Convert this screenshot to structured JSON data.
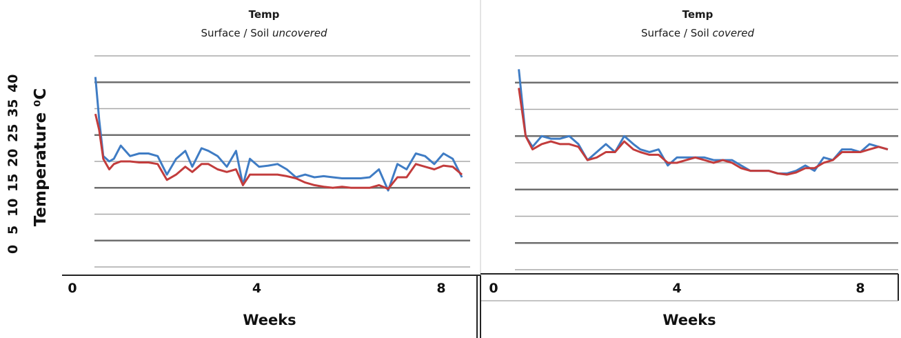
{
  "chart_data": [
    {
      "type": "line",
      "title": "Temp",
      "subtitle_prefix": "Surface / Soil ",
      "subtitle_em": "uncovered",
      "xlabel": "Weeks",
      "ylabel": "Temperature ⁰C",
      "yticks": [
        "0",
        "5",
        "10",
        "15",
        "20",
        "25",
        "35",
        "40"
      ],
      "xticks": [
        0,
        4,
        8
      ],
      "xlim": [
        0,
        8.7
      ],
      "ylim": [
        -2,
        40
      ],
      "gridlines": [
        0,
        5,
        10,
        15,
        20,
        25,
        30,
        35,
        40
      ],
      "series": [
        {
          "color": "#3f7cc4",
          "x": [
            0.5,
            0.58,
            0.67,
            0.8,
            0.9,
            1.05,
            1.25,
            1.45,
            1.65,
            1.85,
            2.05,
            2.25,
            2.45,
            2.6,
            2.8,
            2.95,
            3.15,
            3.35,
            3.55,
            3.7,
            3.85,
            4.05,
            4.25,
            4.45,
            4.65,
            4.85,
            5.05,
            5.25,
            5.45,
            5.65,
            5.85,
            6.05,
            6.25,
            6.45,
            6.65,
            6.85,
            7.05,
            7.25,
            7.45,
            7.65,
            7.85,
            8.05,
            8.25,
            8.45
          ],
          "y": [
            36,
            28,
            21,
            20,
            20.5,
            23,
            21,
            21.5,
            21.5,
            21,
            17.5,
            20.5,
            22,
            19,
            22.5,
            22,
            21,
            19,
            22,
            15.5,
            20.5,
            19,
            19.2,
            19.5,
            18.5,
            17,
            17.5,
            17,
            17.2,
            17,
            16.8,
            16.8,
            16.8,
            17,
            18.5,
            14.5,
            19.5,
            18.5,
            21.5,
            21,
            19.5,
            21.5,
            20.5,
            17
          ]
        },
        {
          "color": "#c23c3c",
          "x": [
            0.5,
            0.58,
            0.67,
            0.8,
            0.9,
            1.05,
            1.25,
            1.45,
            1.65,
            1.85,
            2.05,
            2.25,
            2.45,
            2.6,
            2.8,
            2.95,
            3.15,
            3.35,
            3.55,
            3.7,
            3.85,
            4.05,
            4.25,
            4.45,
            4.65,
            4.85,
            5.05,
            5.25,
            5.45,
            5.65,
            5.85,
            6.05,
            6.25,
            6.45,
            6.65,
            6.85,
            7.05,
            7.25,
            7.45,
            7.65,
            7.85,
            8.05,
            8.25,
            8.45
          ],
          "y": [
            29,
            26,
            20.5,
            18.5,
            19.5,
            20,
            20,
            19.8,
            19.8,
            19.5,
            16.5,
            17.5,
            19,
            18,
            19.5,
            19.5,
            18.5,
            18,
            18.5,
            15.5,
            17.5,
            17.5,
            17.5,
            17.5,
            17.2,
            16.8,
            16,
            15.5,
            15.2,
            15,
            15.2,
            15,
            15,
            15,
            15.5,
            14.8,
            17,
            17,
            19.5,
            19,
            18.5,
            19.2,
            19,
            17.5
          ]
        }
      ]
    },
    {
      "type": "line",
      "title": "Temp",
      "subtitle_prefix": "Surface / Soil ",
      "subtitle_em": "covered",
      "xlabel": "Weeks",
      "xticks": [
        0,
        4,
        8
      ],
      "xlim": [
        0,
        8.7
      ],
      "ylim": [
        -2,
        40
      ],
      "gridlines": [
        0,
        5,
        10,
        15,
        20,
        25,
        30,
        35,
        40
      ],
      "series": [
        {
          "color": "#3f7cc4",
          "x": [
            0.55,
            0.7,
            0.85,
            1.05,
            1.25,
            1.45,
            1.65,
            1.85,
            2.05,
            2.25,
            2.45,
            2.65,
            2.85,
            3.05,
            3.2,
            3.4,
            3.6,
            3.8,
            4.0,
            4.2,
            4.4,
            4.6,
            4.8,
            5.0,
            5.2,
            5.4,
            5.6,
            5.8,
            6.0,
            6.2,
            6.4,
            6.6,
            6.8,
            7.0,
            7.2,
            7.4,
            7.6,
            7.8,
            8.0,
            8.2,
            8.4,
            8.6
          ],
          "y": [
            37.5,
            25,
            23,
            25,
            24.5,
            24.5,
            25,
            23.5,
            20.5,
            22,
            23.5,
            22,
            25,
            23.5,
            22.5,
            22,
            22.5,
            19.5,
            21,
            21,
            21,
            21,
            20.5,
            20.5,
            20.5,
            19.5,
            18.5,
            18.5,
            18.5,
            18,
            18,
            18.5,
            19.5,
            18.5,
            21,
            20.5,
            22.5,
            22.5,
            22,
            23.5,
            23,
            22.5
          ]
        },
        {
          "color": "#c23c3c",
          "x": [
            0.55,
            0.7,
            0.85,
            1.05,
            1.25,
            1.45,
            1.65,
            1.85,
            2.05,
            2.25,
            2.45,
            2.65,
            2.85,
            3.05,
            3.2,
            3.4,
            3.6,
            3.8,
            4.0,
            4.2,
            4.4,
            4.6,
            4.8,
            5.0,
            5.2,
            5.4,
            5.6,
            5.8,
            6.0,
            6.2,
            6.4,
            6.6,
            6.8,
            7.0,
            7.2,
            7.4,
            7.6,
            7.8,
            8.0,
            8.2,
            8.4,
            8.6
          ],
          "y": [
            34,
            25,
            22.5,
            23.5,
            24,
            23.5,
            23.5,
            23,
            20.5,
            21,
            22,
            22,
            24,
            22.5,
            22,
            21.5,
            21.5,
            20,
            20,
            20.5,
            21,
            20.5,
            20,
            20.5,
            20,
            19,
            18.5,
            18.5,
            18.5,
            18,
            17.8,
            18.2,
            19,
            19,
            20,
            20.5,
            22,
            22,
            22,
            22.5,
            23,
            22.5
          ]
        }
      ]
    }
  ]
}
